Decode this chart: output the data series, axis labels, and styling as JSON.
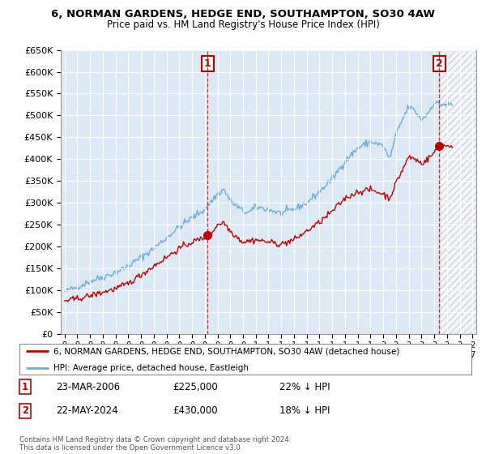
{
  "title_line1": "6, NORMAN GARDENS, HEDGE END, SOUTHAMPTON, SO30 4AW",
  "title_line2": "Price paid vs. HM Land Registry's House Price Index (HPI)",
  "ylabel_ticks": [
    "£0",
    "£50K",
    "£100K",
    "£150K",
    "£200K",
    "£250K",
    "£300K",
    "£350K",
    "£400K",
    "£450K",
    "£500K",
    "£550K",
    "£600K",
    "£650K"
  ],
  "ytick_values": [
    0,
    50000,
    100000,
    150000,
    200000,
    250000,
    300000,
    350000,
    400000,
    450000,
    500000,
    550000,
    600000,
    650000
  ],
  "hpi_color": "#6aabdc",
  "price_color": "#c00000",
  "marker1_date": 2006.22,
  "marker1_price": 225000,
  "marker2_date": 2024.38,
  "marker2_price": 430000,
  "legend_line1": "6, NORMAN GARDENS, HEDGE END, SOUTHAMPTON, SO30 4AW (detached house)",
  "legend_line2": "HPI: Average price, detached house, Eastleigh",
  "footer": "Contains HM Land Registry data © Crown copyright and database right 2024.\nThis data is licensed under the Open Government Licence v3.0.",
  "background_color": "#ffffff",
  "plot_bg_color": "#dce9f5",
  "grid_color": "#ffffff",
  "xmin": 1994.7,
  "xmax": 2027.3,
  "ymin": 0,
  "ymax": 650000,
  "hatch_start": 2024.5
}
